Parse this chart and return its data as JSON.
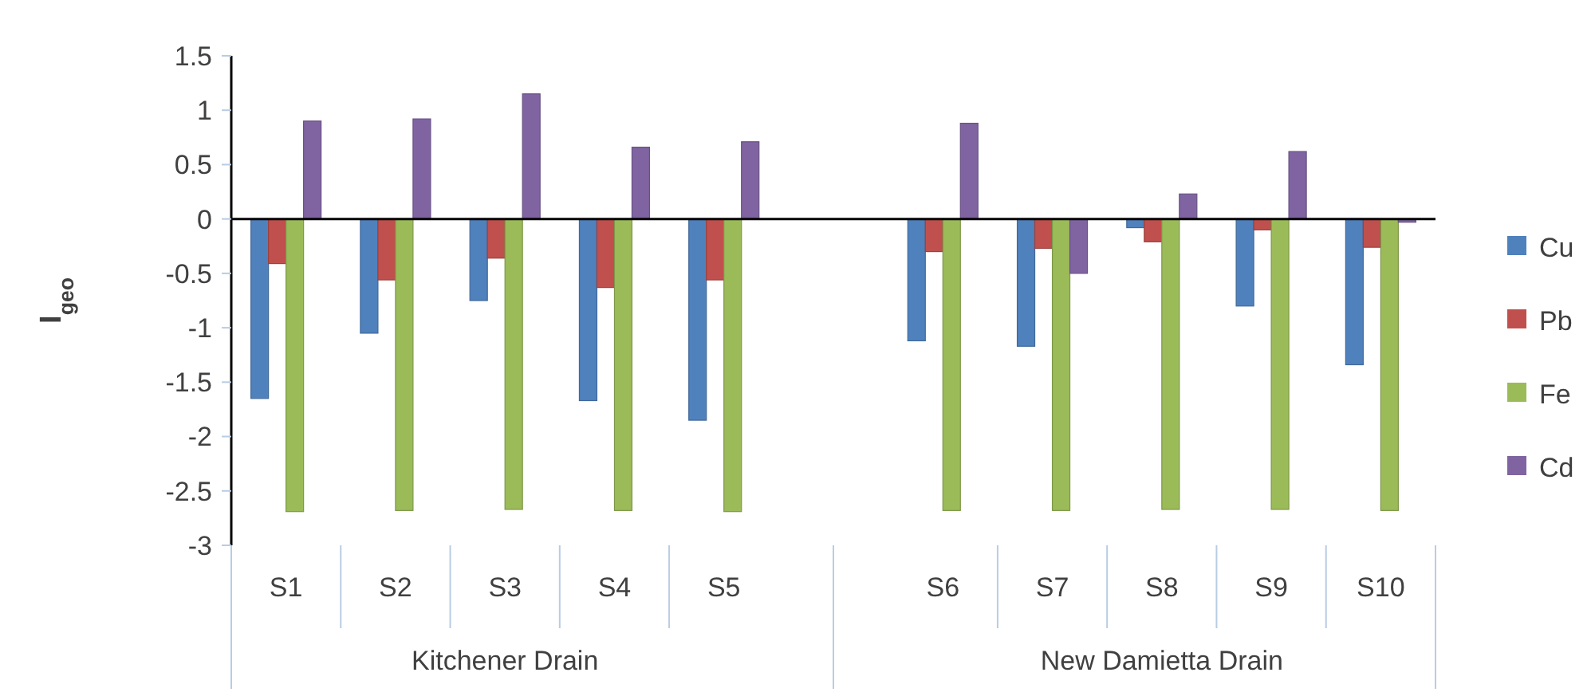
{
  "chart_data": {
    "type": "bar",
    "ylabel": "I$_{geo}$",
    "categories": [
      "S1",
      "S2",
      "S3",
      "S4",
      "S5",
      null,
      "S6",
      "S7",
      "S8",
      "S9",
      "S10"
    ],
    "series": [
      {
        "name": "Cu",
        "color": "#4f81bd",
        "values": [
          -1.65,
          -1.05,
          -0.75,
          -1.67,
          -1.85,
          null,
          -1.12,
          -1.17,
          -0.08,
          -0.8,
          -1.34
        ]
      },
      {
        "name": "Pb",
        "color": "#c0504d",
        "values": [
          -0.41,
          -0.56,
          -0.36,
          -0.63,
          -0.56,
          null,
          -0.3,
          -0.27,
          -0.21,
          -0.1,
          -0.26
        ]
      },
      {
        "name": "Fe",
        "color": "#9bbb59",
        "values": [
          -2.69,
          -2.68,
          -2.67,
          -2.68,
          -2.69,
          null,
          -2.68,
          -2.68,
          -2.67,
          -2.67,
          -2.68
        ]
      },
      {
        "name": "Cd",
        "color": "#8064a2",
        "values": [
          0.9,
          0.92,
          1.15,
          0.66,
          0.71,
          null,
          0.88,
          -0.5,
          0.23,
          0.62,
          -0.03
        ]
      }
    ],
    "annotations": [
      "Kitchener Drain",
      "New Damietta Drain"
    ],
    "ylim": [
      -3,
      1.5
    ],
    "yticks": [
      -3,
      -2.5,
      -2,
      -1.5,
      -1,
      -0.5,
      0,
      0.5,
      1,
      1.5
    ],
    "legend": "right"
  }
}
